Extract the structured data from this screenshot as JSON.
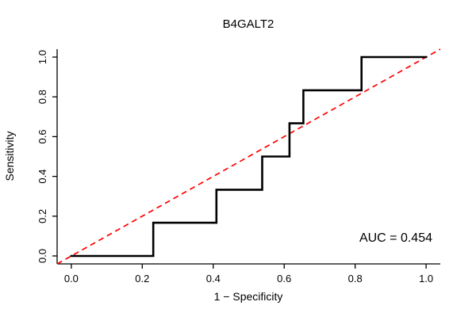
{
  "chart_data": {
    "type": "line",
    "title": "B4GALT2",
    "xlabel": "1 − Specificity",
    "ylabel": "Sensitivity",
    "xlim": [
      0,
      1
    ],
    "ylim": [
      0,
      1
    ],
    "grid": false,
    "xticks": [
      0,
      0.2,
      0.4,
      0.6,
      0.8,
      1.0
    ],
    "yticks": [
      0,
      0.2,
      0.4,
      0.6,
      0.8,
      1.0
    ],
    "xtick_labels": [
      "0.0",
      "0.2",
      "0.4",
      "0.6",
      "0.8",
      "1.0"
    ],
    "ytick_labels": [
      "0.0",
      "0.2",
      "0.4",
      "0.6",
      "0.8",
      "1.0"
    ],
    "series": [
      {
        "name": "roc-curve",
        "color": "#000000",
        "style": "solid",
        "points": [
          [
            0.0,
            0.0
          ],
          [
            0.231,
            0.0
          ],
          [
            0.231,
            0.167
          ],
          [
            0.409,
            0.167
          ],
          [
            0.409,
            0.333
          ],
          [
            0.538,
            0.333
          ],
          [
            0.538,
            0.5
          ],
          [
            0.615,
            0.5
          ],
          [
            0.615,
            0.667
          ],
          [
            0.654,
            0.667
          ],
          [
            0.654,
            0.833
          ],
          [
            0.818,
            0.833
          ],
          [
            0.818,
            1.0
          ],
          [
            1.0,
            1.0
          ]
        ]
      },
      {
        "name": "chance-diagonal",
        "color": "#ff0000",
        "style": "dashed",
        "points": [
          [
            0.0,
            0.0
          ],
          [
            1.0,
            1.0
          ]
        ]
      }
    ],
    "annotation": {
      "auc_label": "AUC = 0.454",
      "auc_value": 0.454
    },
    "colors": {
      "axis": "#000000",
      "background": "#ffffff"
    }
  }
}
